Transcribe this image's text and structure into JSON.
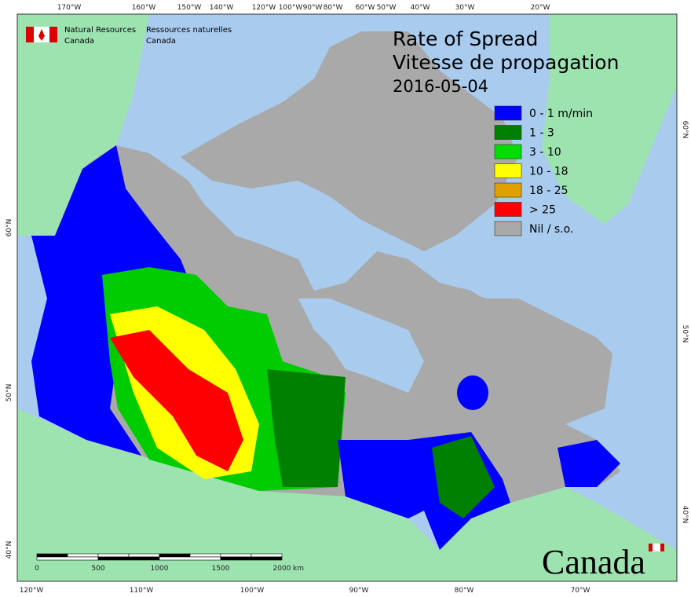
{
  "header": {
    "agency_en": [
      "Natural Resources",
      "Canada"
    ],
    "agency_fr": [
      "Ressources naturelles",
      "Canada"
    ]
  },
  "title": [
    "Rate of Spread",
    "Vitesse de propagation"
  ],
  "date": "2016-05-04",
  "legend": [
    {
      "label": "0 - 1 m/min",
      "color": "#0000ff"
    },
    {
      "label": "1 - 3",
      "color": "#008000"
    },
    {
      "label": "3 - 10",
      "color": "#00dd00"
    },
    {
      "label": "10 - 18",
      "color": "#ffff00"
    },
    {
      "label": "18 - 25",
      "color": "#e0a000"
    },
    {
      "label": "> 25",
      "color": "#ff0000"
    },
    {
      "label": "Nil / s.o.",
      "color": "#a9a9a9"
    }
  ],
  "top_longitudes": [
    "170°W",
    "160°W",
    "150°W",
    "140°W",
    "120°W",
    "100°W",
    "90°W",
    "80°W",
    "60°W",
    "50°W",
    "40°W",
    "30°W",
    "20°W"
  ],
  "bottom_longitudes": [
    "120°W",
    "110°W",
    "100°W",
    "90°W",
    "80°W",
    "70°W"
  ],
  "left_latitudes": [
    "60°N",
    "50°N",
    "40°N"
  ],
  "right_latitudes": [
    "60°N",
    "50°N",
    "40°N"
  ],
  "scale_bar": {
    "labels": [
      "0",
      "500",
      "1000",
      "1500",
      "2000"
    ],
    "unit": "km"
  },
  "wordmark": "Canada"
}
